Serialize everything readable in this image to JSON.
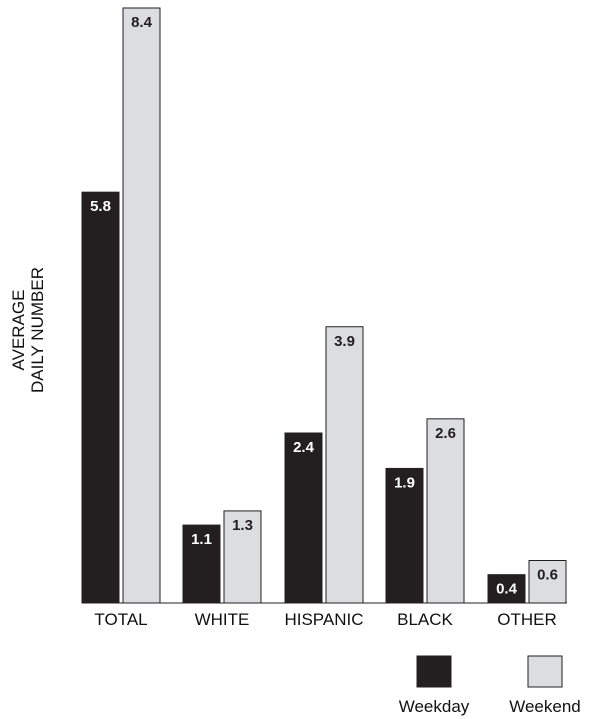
{
  "chart_data": {
    "type": "bar",
    "title": "",
    "xlabel": "",
    "ylabel": [
      "AVERAGE",
      "DAILY NUMBER"
    ],
    "categories": [
      "TOTAL",
      "WHITE",
      "HISPANIC",
      "BLACK",
      "OTHER"
    ],
    "series": [
      {
        "name": "Weekday",
        "values": [
          5.8,
          1.1,
          2.4,
          1.9,
          0.4
        ],
        "labels": [
          "5.8",
          "1.1",
          "2.4",
          "1.9",
          "0.4"
        ],
        "color": "#231f20"
      },
      {
        "name": "Weekend",
        "values": [
          8.4,
          1.3,
          3.9,
          2.6,
          0.6
        ],
        "labels": [
          "8.4",
          "1.3",
          "3.9",
          "2.6",
          "0.6"
        ],
        "color": "#dcdddf"
      }
    ],
    "ylim": [
      0,
      8.4
    ],
    "grid": false,
    "legend_position": "bottom-right"
  }
}
